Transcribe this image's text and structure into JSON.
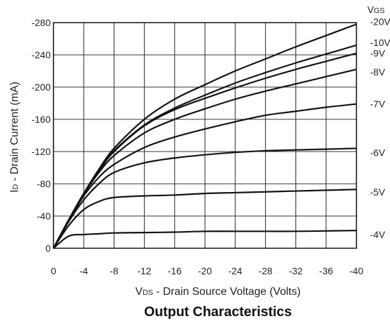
{
  "chart_data": {
    "type": "line",
    "title": "Output Characteristics",
    "xlabel": {
      "main": "V",
      "sub": "DS",
      "rest": " - Drain Source Voltage (Volts)"
    },
    "ylabel": {
      "main": "I",
      "sub": "D",
      "rest": " - Drain Current (mA)"
    },
    "legend_title": {
      "main": "V",
      "sub": "GS"
    },
    "xlim": [
      0,
      -40
    ],
    "ylim": [
      0,
      -280
    ],
    "x_ticks": [
      0,
      -4,
      -8,
      -12,
      -16,
      -20,
      -24,
      -28,
      -32,
      -36,
      -40
    ],
    "x_tick_labels": [
      "0",
      "-4",
      "-8",
      "-12",
      "-16",
      "-20",
      "-24",
      "-28",
      "-32",
      "-36",
      "-40"
    ],
    "y_ticks": [
      0,
      -40,
      -80,
      -120,
      -160,
      -200,
      -240,
      -280
    ],
    "y_tick_labels": [
      "0",
      "-40",
      "-80",
      "-120",
      "-160",
      "-200",
      "-240",
      "-280"
    ],
    "grid": true,
    "series": [
      {
        "name": "-20V",
        "x": [
          0,
          -2,
          -4,
          -6,
          -8,
          -12,
          -16,
          -20,
          -24,
          -28,
          -32,
          -36,
          -40
        ],
        "y": [
          0,
          -35,
          -68,
          -98,
          -124,
          -160,
          -185,
          -203,
          -220,
          -235,
          -250,
          -264,
          -278
        ]
      },
      {
        "name": "-10V",
        "x": [
          0,
          -2,
          -4,
          -6,
          -8,
          -12,
          -16,
          -20,
          -24,
          -28,
          -32,
          -36,
          -40
        ],
        "y": [
          0,
          -35,
          -68,
          -97,
          -121,
          -153,
          -174,
          -190,
          -205,
          -218,
          -230,
          -241,
          -252
        ]
      },
      {
        "name": "-9V",
        "x": [
          0,
          -2,
          -4,
          -6,
          -8,
          -12,
          -16,
          -20,
          -24,
          -28,
          -32,
          -36,
          -40
        ],
        "y": [
          0,
          -35,
          -68,
          -96,
          -120,
          -152,
          -172,
          -186,
          -199,
          -211,
          -222,
          -232,
          -242
        ]
      },
      {
        "name": "-8V",
        "x": [
          0,
          -2,
          -4,
          -6,
          -8,
          -12,
          -16,
          -20,
          -24,
          -28,
          -32,
          -36,
          -40
        ],
        "y": [
          0,
          -35,
          -67,
          -94,
          -115,
          -143,
          -160,
          -173,
          -185,
          -195,
          -204,
          -213,
          -222
        ]
      },
      {
        "name": "-7V",
        "x": [
          0,
          -2,
          -4,
          -6,
          -8,
          -12,
          -16,
          -20,
          -24,
          -28,
          -32,
          -36,
          -40
        ],
        "y": [
          0,
          -34,
          -65,
          -88,
          -104,
          -125,
          -138,
          -148,
          -157,
          -165,
          -170,
          -175,
          -179
        ]
      },
      {
        "name": "-6V",
        "x": [
          0,
          -2,
          -4,
          -6,
          -8,
          -12,
          -16,
          -20,
          -24,
          -28,
          -32,
          -36,
          -40
        ],
        "y": [
          0,
          -33,
          -60,
          -80,
          -94,
          -106,
          -112,
          -116,
          -119,
          -121,
          -122,
          -123,
          -124
        ]
      },
      {
        "name": "-5V",
        "x": [
          0,
          -2,
          -4,
          -6,
          -8,
          -12,
          -16,
          -20,
          -24,
          -28,
          -32,
          -36,
          -40
        ],
        "y": [
          0,
          -28,
          -48,
          -58,
          -63,
          -65,
          -66,
          -68,
          -69,
          -70,
          -71,
          -72,
          -73
        ]
      },
      {
        "name": "-4V",
        "x": [
          0,
          -2,
          -4,
          -6,
          -8,
          -12,
          -16,
          -20,
          -24,
          -28,
          -32,
          -36,
          -40
        ],
        "y": [
          0,
          -15,
          -17,
          -18,
          -19,
          -19.5,
          -20,
          -21,
          -21,
          -21,
          -21,
          -21.5,
          -22
        ]
      }
    ],
    "curve_labels": [
      "-20V",
      "-10V",
      "-9V",
      "-8V",
      "-7V",
      "-6V",
      "-5V",
      "-4V"
    ]
  }
}
